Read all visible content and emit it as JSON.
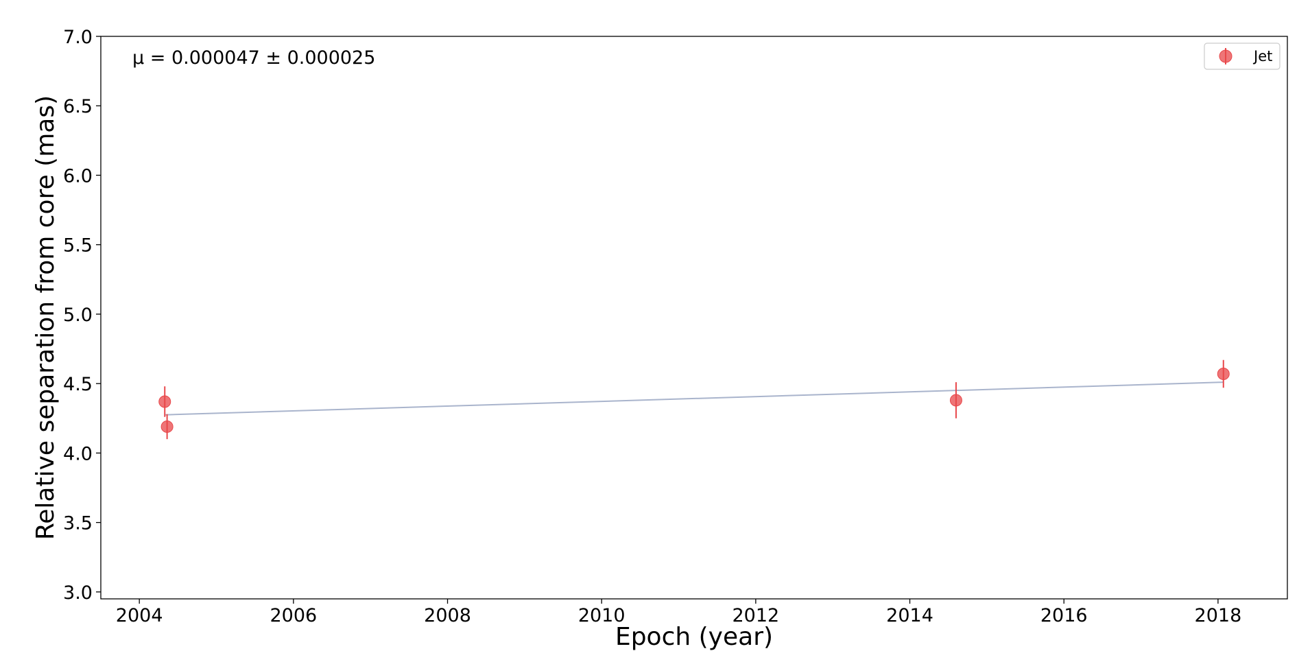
{
  "chart_data": {
    "type": "scatter",
    "title": "",
    "xlabel": "Epoch (year)",
    "ylabel": "Relative separation from core (mas)",
    "xlim": [
      2003.5,
      2018.9
    ],
    "ylim": [
      2.95,
      7.0
    ],
    "xticks": [
      2004,
      2006,
      2008,
      2010,
      2012,
      2014,
      2016,
      2018
    ],
    "xtick_labels": [
      "2004",
      "2006",
      "2008",
      "2010",
      "2012",
      "2014",
      "2016",
      "2018"
    ],
    "yticks": [
      3.0,
      3.5,
      4.0,
      4.5,
      5.0,
      5.5,
      6.0,
      6.5,
      7.0
    ],
    "ytick_labels": [
      "3.0",
      "3.5",
      "4.0",
      "4.5",
      "5.0",
      "5.5",
      "6.0",
      "6.5",
      "7.0"
    ],
    "grid": false,
    "legend_position": "top-right",
    "annotation": "μ = 0.000047 ± 0.000025",
    "series": [
      {
        "name": "Jet",
        "color": "#e8474a",
        "x": [
          2004.33,
          2004.36,
          2014.6,
          2018.07
        ],
        "y": [
          4.37,
          4.19,
          4.38,
          4.57
        ],
        "yerr": [
          0.11,
          0.09,
          0.13,
          0.1
        ]
      }
    ],
    "fit_line": {
      "color": "#a9b4cc",
      "x": [
        2004.33,
        2018.07
      ],
      "y": [
        4.275,
        4.51
      ]
    }
  }
}
